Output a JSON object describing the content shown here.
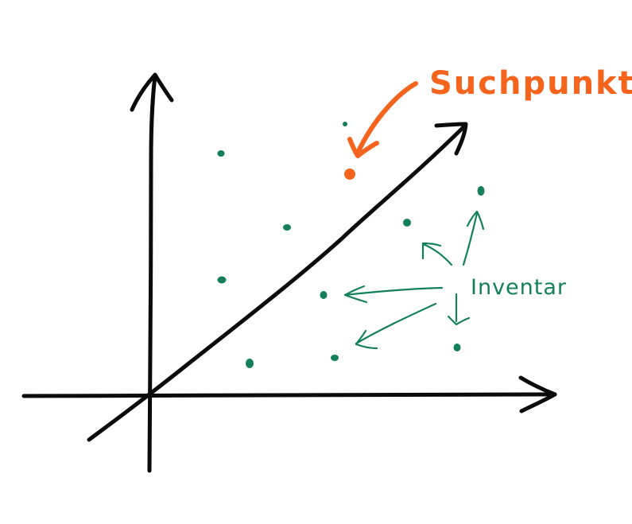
{
  "labels": {
    "query_point": "Suchpunkt",
    "inventory": "Inventar"
  },
  "colors": {
    "background": "#ffffff",
    "axes": "#0b0b0b",
    "inventory": "#14805a",
    "query": "#f4641c"
  }
}
